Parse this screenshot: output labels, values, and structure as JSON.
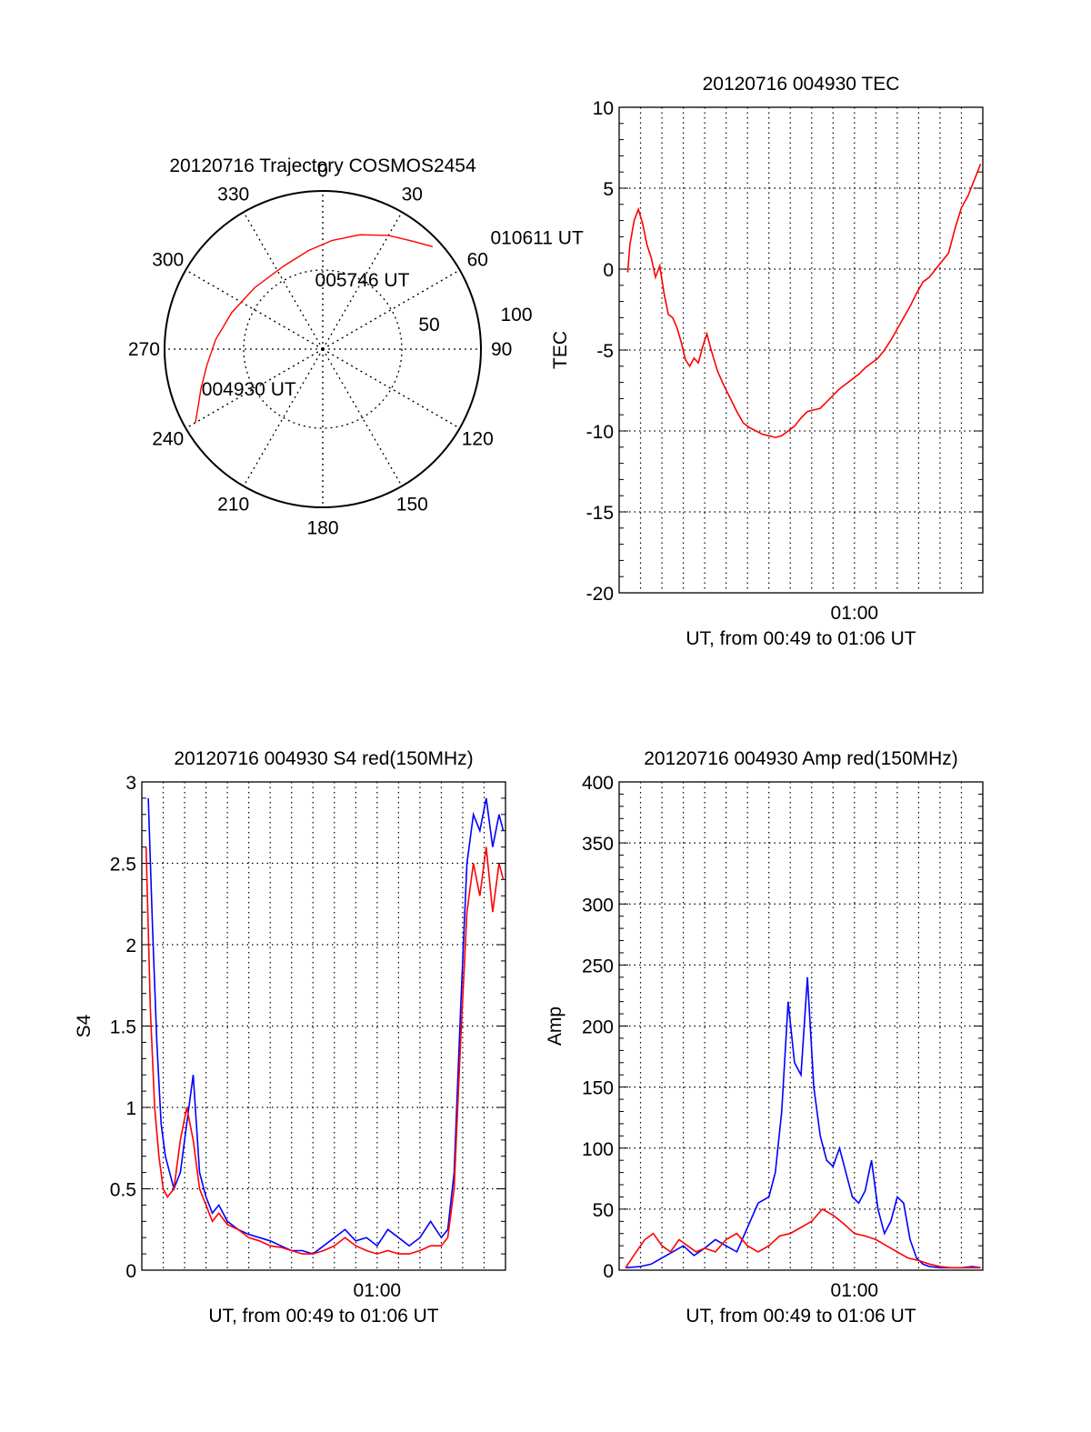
{
  "chart_data": [
    {
      "type": "polar",
      "title": "20120716 Trajectory COSMOS2454",
      "azimuth_labels": [
        "0",
        "30",
        "60",
        "90",
        "120",
        "150",
        "180",
        "210",
        "240",
        "270",
        "300",
        "330"
      ],
      "azimuth_values": [
        0,
        30,
        60,
        90,
        120,
        150,
        180,
        210,
        240,
        270,
        300,
        330
      ],
      "zenith_ring_labels": [
        "50",
        "100"
      ],
      "zenith_ring_values": [
        50,
        100
      ],
      "trajectory": {
        "name": "COSMOS2454",
        "az": [
          240,
          245,
          252,
          262,
          275,
          292,
          312,
          335,
          352,
          5,
          18,
          30,
          40,
          47
        ],
        "zen": [
          93,
          87,
          81,
          74,
          68,
          62,
          58,
          58,
          63,
          69,
          76,
          83,
          89,
          95
        ]
      },
      "annotations": [
        {
          "text": "004930 UT",
          "az": 249,
          "zen": 82
        },
        {
          "text": "005746 UT",
          "az": 353,
          "zen": 40
        },
        {
          "text": "010611 UT",
          "az": 58,
          "zen": 125
        }
      ],
      "line_color": "#ff0000"
    },
    {
      "type": "line",
      "title": "20120716 004930 TEC",
      "xlabel": "UT, from 00:49 to 01:06 UT",
      "ylabel": "TEC",
      "xlim": [
        0,
        17
      ],
      "ylim": [
        -20,
        10
      ],
      "yticks": [
        -20,
        -15,
        -10,
        -5,
        0,
        5,
        10
      ],
      "ytick_labels": [
        "-20",
        "-15",
        "-10",
        "-5",
        "0",
        "5",
        "10"
      ],
      "xtick_labels": [
        {
          "x": 11,
          "label": "01:00"
        }
      ],
      "series": [
        {
          "color": "#ff0000",
          "x": [
            0.4,
            0.5,
            0.7,
            0.9,
            1.1,
            1.3,
            1.5,
            1.7,
            1.9,
            2.1,
            2.3,
            2.5,
            2.7,
            2.9,
            3.1,
            3.3,
            3.5,
            3.7,
            3.9,
            4.1,
            4.3,
            4.6,
            4.9,
            5.2,
            5.5,
            5.8,
            6.1,
            6.4,
            6.7,
            7.0,
            7.3,
            7.6,
            7.9,
            8.2,
            8.5,
            8.8,
            9.1,
            9.4,
            9.7,
            10.0,
            10.3,
            10.6,
            10.9,
            11.2,
            11.5,
            11.8,
            12.1,
            12.4,
            12.7,
            13.0,
            13.3,
            13.6,
            13.9,
            14.2,
            14.5,
            14.8,
            15.1,
            15.4,
            15.7,
            16.0,
            16.3,
            16.6,
            16.9
          ],
          "y": [
            -0.2,
            1.5,
            3.0,
            3.7,
            2.8,
            1.5,
            0.7,
            -0.5,
            0.2,
            -1.5,
            -2.8,
            -3.0,
            -3.6,
            -4.5,
            -5.6,
            -6.0,
            -5.5,
            -5.8,
            -4.8,
            -4.0,
            -5.0,
            -6.3,
            -7.2,
            -8.0,
            -8.8,
            -9.5,
            -9.8,
            -10.0,
            -10.2,
            -10.3,
            -10.4,
            -10.3,
            -10.0,
            -9.7,
            -9.2,
            -8.8,
            -8.7,
            -8.6,
            -8.2,
            -7.8,
            -7.4,
            -7.1,
            -6.8,
            -6.5,
            -6.1,
            -5.8,
            -5.5,
            -5.0,
            -4.4,
            -3.7,
            -3.0,
            -2.3,
            -1.5,
            -0.8,
            -0.5,
            0.0,
            0.5,
            1.0,
            2.5,
            3.8,
            4.5,
            5.5,
            6.5
          ]
        }
      ]
    },
    {
      "type": "line",
      "title": "20120716 004930 S4 red(150MHz)",
      "xlabel": "UT, from 00:49 to 01:06 UT",
      "ylabel": "S4",
      "xlim": [
        0,
        17
      ],
      "ylim": [
        0,
        3
      ],
      "yticks": [
        0,
        0.5,
        1,
        1.5,
        2,
        2.5,
        3
      ],
      "ytick_labels": [
        "0",
        "0.5",
        "1",
        "1.5",
        "2",
        "2.5",
        "3"
      ],
      "xtick_labels": [
        {
          "x": 11,
          "label": "01:00"
        }
      ],
      "series": [
        {
          "color": "#0000ff",
          "x": [
            0.3,
            0.5,
            0.7,
            0.9,
            1.1,
            1.3,
            1.5,
            1.8,
            2.1,
            2.4,
            2.7,
            3.0,
            3.3,
            3.6,
            4.0,
            4.5,
            5.0,
            5.5,
            6.0,
            6.5,
            7.0,
            7.5,
            8.0,
            8.5,
            9.0,
            9.5,
            10.0,
            10.5,
            11.0,
            11.5,
            12.0,
            12.5,
            13.0,
            13.5,
            14.0,
            14.3,
            14.6,
            14.9,
            15.2,
            15.5,
            15.8,
            16.1,
            16.4,
            16.7,
            16.9
          ],
          "y": [
            2.9,
            2.1,
            1.4,
            0.9,
            0.7,
            0.6,
            0.5,
            0.6,
            0.9,
            1.2,
            0.6,
            0.45,
            0.35,
            0.4,
            0.3,
            0.25,
            0.22,
            0.2,
            0.18,
            0.15,
            0.12,
            0.12,
            0.1,
            0.15,
            0.2,
            0.25,
            0.18,
            0.2,
            0.15,
            0.25,
            0.2,
            0.15,
            0.2,
            0.3,
            0.2,
            0.25,
            0.6,
            1.6,
            2.5,
            2.8,
            2.7,
            2.9,
            2.6,
            2.8,
            2.7
          ]
        },
        {
          "color": "#ff0000",
          "x": [
            0.2,
            0.4,
            0.6,
            0.8,
            1.0,
            1.2,
            1.5,
            1.8,
            2.1,
            2.4,
            2.7,
            3.0,
            3.3,
            3.6,
            4.0,
            4.5,
            5.0,
            5.5,
            6.0,
            6.5,
            7.0,
            7.5,
            8.0,
            8.5,
            9.0,
            9.5,
            10.0,
            10.5,
            11.0,
            11.5,
            12.0,
            12.5,
            13.0,
            13.5,
            14.0,
            14.3,
            14.6,
            14.9,
            15.2,
            15.5,
            15.8,
            16.1,
            16.4,
            16.7,
            16.9
          ],
          "y": [
            2.6,
            1.6,
            1.0,
            0.7,
            0.5,
            0.45,
            0.5,
            0.8,
            1.0,
            0.8,
            0.5,
            0.4,
            0.3,
            0.35,
            0.28,
            0.25,
            0.2,
            0.18,
            0.15,
            0.14,
            0.12,
            0.1,
            0.1,
            0.12,
            0.15,
            0.2,
            0.15,
            0.12,
            0.1,
            0.12,
            0.1,
            0.1,
            0.12,
            0.15,
            0.15,
            0.2,
            0.5,
            1.4,
            2.2,
            2.5,
            2.3,
            2.6,
            2.2,
            2.5,
            2.4
          ]
        }
      ]
    },
    {
      "type": "line",
      "title": "20120716 004930 Amp red(150MHz)",
      "xlabel": "UT, from 00:49 to 01:06 UT",
      "ylabel": "Amp",
      "xlim": [
        0,
        17
      ],
      "ylim": [
        0,
        400
      ],
      "yticks": [
        0,
        50,
        100,
        150,
        200,
        250,
        300,
        350,
        400
      ],
      "ytick_labels": [
        "0",
        "50",
        "100",
        "150",
        "200",
        "250",
        "300",
        "350",
        "400"
      ],
      "xtick_labels": [
        {
          "x": 11,
          "label": "01:00"
        }
      ],
      "series": [
        {
          "color": "#0000ff",
          "x": [
            0.3,
            1.0,
            1.5,
            2.0,
            2.5,
            3.0,
            3.5,
            4.0,
            4.5,
            5.0,
            5.5,
            6.0,
            6.5,
            7.0,
            7.3,
            7.6,
            7.9,
            8.2,
            8.5,
            8.8,
            9.1,
            9.4,
            9.7,
            10.0,
            10.3,
            10.6,
            10.9,
            11.2,
            11.5,
            11.8,
            12.1,
            12.4,
            12.7,
            13.0,
            13.3,
            13.6,
            13.9,
            14.2,
            14.5,
            15.0,
            15.5,
            16.0,
            16.5,
            16.9
          ],
          "y": [
            2,
            3,
            5,
            10,
            15,
            20,
            12,
            18,
            25,
            20,
            15,
            35,
            55,
            60,
            80,
            130,
            220,
            170,
            160,
            240,
            150,
            110,
            90,
            85,
            100,
            80,
            60,
            55,
            65,
            90,
            50,
            30,
            40,
            60,
            55,
            25,
            10,
            5,
            3,
            2,
            2,
            2,
            3,
            2
          ]
        },
        {
          "color": "#ff0000",
          "x": [
            0.3,
            0.8,
            1.2,
            1.6,
            2.0,
            2.4,
            2.8,
            3.2,
            3.6,
            4.0,
            4.5,
            5.0,
            5.5,
            6.0,
            6.5,
            7.0,
            7.5,
            8.0,
            8.5,
            9.0,
            9.5,
            10.0,
            10.5,
            11.0,
            11.5,
            12.0,
            12.5,
            13.0,
            13.5,
            14.0,
            14.5,
            15.0,
            15.5,
            16.0,
            16.5,
            16.9
          ],
          "y": [
            2,
            15,
            25,
            30,
            20,
            15,
            25,
            20,
            15,
            18,
            15,
            25,
            30,
            20,
            15,
            20,
            28,
            30,
            35,
            40,
            50,
            45,
            38,
            30,
            28,
            25,
            20,
            15,
            10,
            8,
            5,
            3,
            2,
            2,
            2,
            2
          ]
        }
      ]
    }
  ]
}
